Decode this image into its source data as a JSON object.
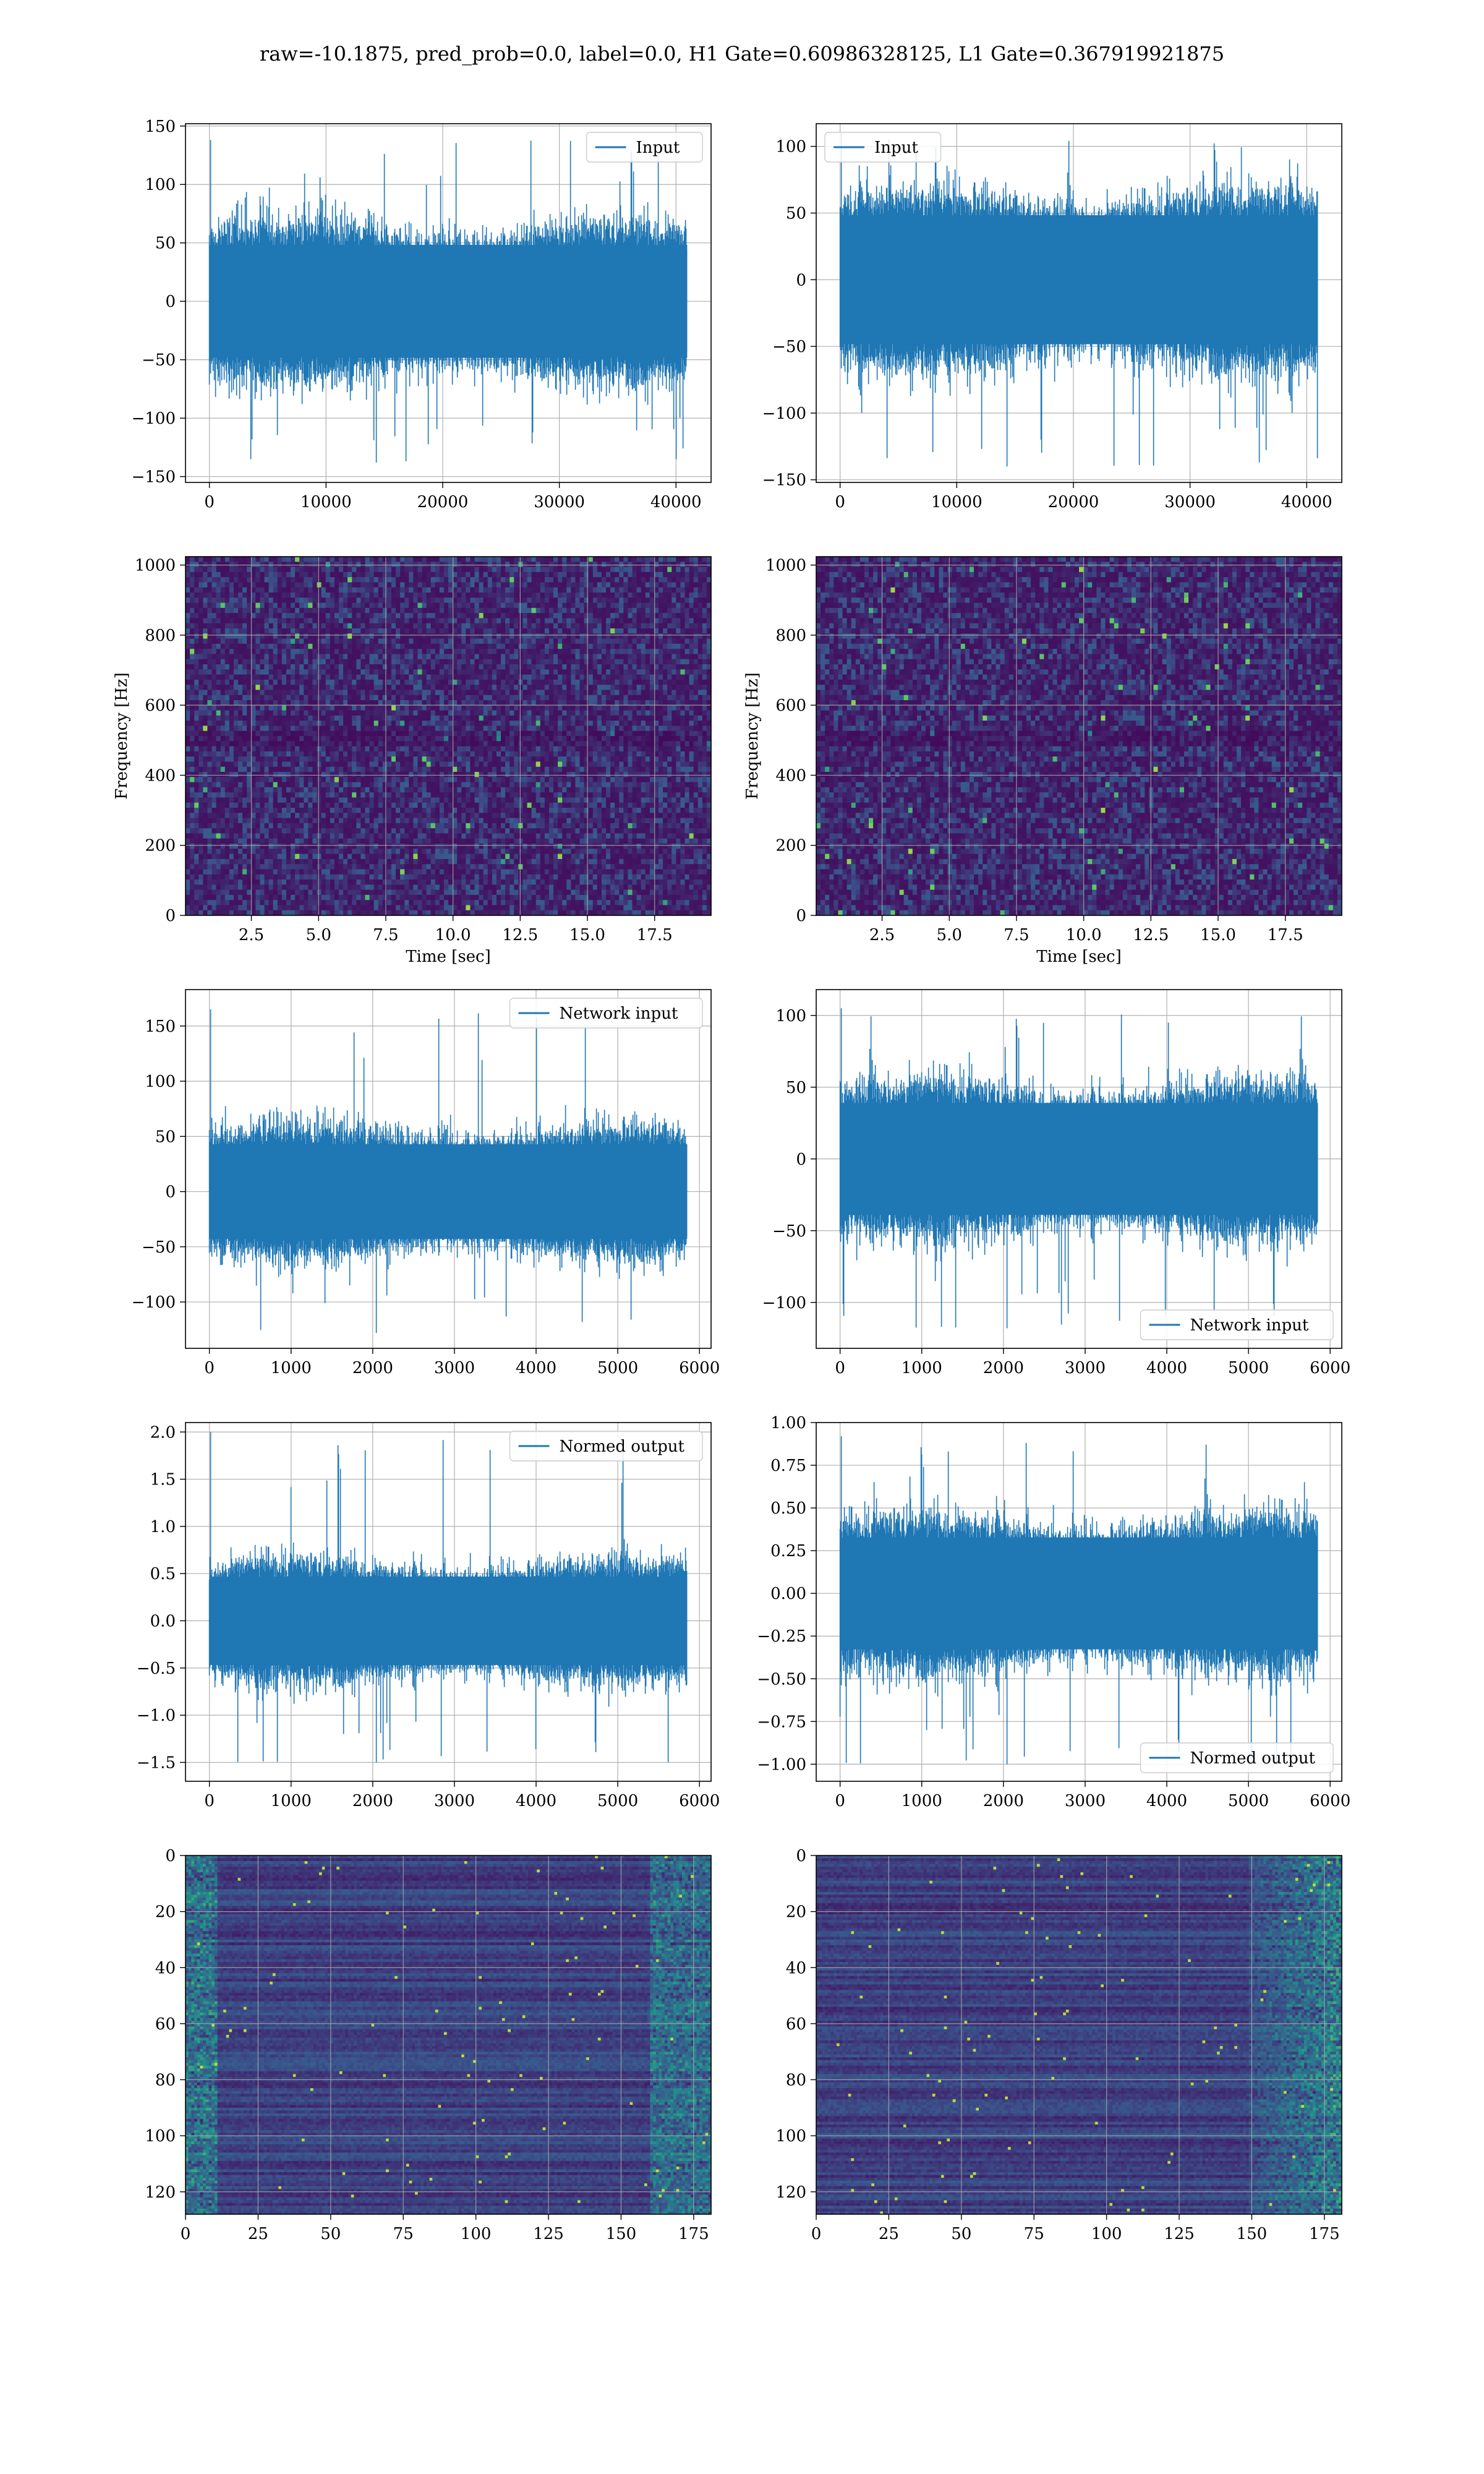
{
  "suptitle": "raw=-10.1875, pred_prob=0.0, label=0.0, H1 Gate=0.60986328125, L1 Gate=0.367919921875",
  "colors": {
    "line": "#1f77b4",
    "grid": "#b0b0b0",
    "viridis_dark": "#440154",
    "viridis_mid": "#21918c",
    "viridis_bright": "#fde725"
  },
  "chart_data": [
    {
      "type": "line",
      "row": 1,
      "col": 1,
      "legend": "Input",
      "legend_loc": "upper right",
      "x_range": [
        0,
        40960
      ],
      "ylim": [
        -155,
        152
      ],
      "xticks": [
        0,
        10000,
        20000,
        30000,
        40000
      ],
      "yticks": [
        -150,
        -100,
        -50,
        0,
        50,
        100,
        150
      ],
      "amplitude": {
        "typical": 62,
        "max": 138,
        "min": -138
      },
      "grid": true
    },
    {
      "type": "line",
      "row": 1,
      "col": 2,
      "legend": "Input",
      "legend_loc": "upper left",
      "x_range": [
        0,
        40960
      ],
      "ylim": [
        -152,
        117
      ],
      "xticks": [
        0,
        10000,
        20000,
        30000,
        40000
      ],
      "yticks": [
        -150,
        -100,
        -50,
        0,
        50,
        100
      ],
      "amplitude": {
        "typical": 62,
        "max": 110,
        "min": -140
      },
      "grid": true
    },
    {
      "type": "heatmap",
      "row": 2,
      "col": 1,
      "xlabel": "Time [sec]",
      "ylabel": "Frequency [Hz]",
      "xlim": [
        0.05,
        19.6
      ],
      "ylim": [
        0,
        1024
      ],
      "xticks": [
        2.5,
        5.0,
        7.5,
        10.0,
        12.5,
        15.0,
        17.5
      ],
      "yticks": [
        0,
        200,
        400,
        600,
        800,
        1000
      ],
      "colormap": "viridis",
      "grid": true
    },
    {
      "type": "heatmap",
      "row": 2,
      "col": 2,
      "xlabel": "Time [sec]",
      "ylabel": "Frequency [Hz]",
      "xlim": [
        0.05,
        19.6
      ],
      "ylim": [
        0,
        1024
      ],
      "xticks": [
        2.5,
        5.0,
        7.5,
        10.0,
        12.5,
        15.0,
        17.5
      ],
      "yticks": [
        0,
        200,
        400,
        600,
        800,
        1000
      ],
      "colormap": "viridis",
      "grid": true
    },
    {
      "type": "line",
      "row": 3,
      "col": 1,
      "legend": "Network input",
      "legend_loc": "upper right",
      "x_range": [
        0,
        5850
      ],
      "ylim": [
        -142,
        183
      ],
      "xticks": [
        0,
        1000,
        2000,
        3000,
        4000,
        5000,
        6000
      ],
      "yticks": [
        -100,
        -50,
        0,
        50,
        100,
        150
      ],
      "amplitude": {
        "typical": 55,
        "max": 165,
        "min": -128
      },
      "grid": true
    },
    {
      "type": "line",
      "row": 3,
      "col": 2,
      "legend": "Network input",
      "legend_loc": "lower right",
      "x_range": [
        0,
        5850
      ],
      "ylim": [
        -132,
        118
      ],
      "xticks": [
        0,
        1000,
        2000,
        3000,
        4000,
        5000,
        6000
      ],
      "yticks": [
        -100,
        -50,
        0,
        50,
        100
      ],
      "amplitude": {
        "typical": 50,
        "max": 105,
        "min": -118
      },
      "grid": true
    },
    {
      "type": "line",
      "row": 4,
      "col": 1,
      "legend": "Normed output",
      "legend_loc": "upper right",
      "x_range": [
        0,
        5850
      ],
      "ylim": [
        -1.7,
        2.1
      ],
      "xticks": [
        0,
        1000,
        2000,
        3000,
        4000,
        5000,
        6000
      ],
      "yticks": [
        -1.5,
        -1.0,
        -0.5,
        0.0,
        0.5,
        1.0,
        1.5,
        2.0
      ],
      "amplitude": {
        "typical": 0.6,
        "max": 2.0,
        "min": -1.5
      },
      "grid": true
    },
    {
      "type": "line",
      "row": 4,
      "col": 2,
      "legend": "Normed output",
      "legend_loc": "lower right",
      "x_range": [
        0,
        5850
      ],
      "ylim": [
        -1.1,
        1.0
      ],
      "xticks": [
        0,
        1000,
        2000,
        3000,
        4000,
        5000,
        6000
      ],
      "yticks": [
        -1.0,
        -0.75,
        -0.5,
        -0.25,
        0.0,
        0.25,
        0.5,
        0.75,
        1.0
      ],
      "amplitude": {
        "typical": 0.42,
        "max": 0.92,
        "min": -1.0
      },
      "grid": true
    },
    {
      "type": "heatmap",
      "row": 5,
      "col": 1,
      "xlim": [
        0,
        181
      ],
      "ylim": [
        128,
        0
      ],
      "xticks": [
        0,
        25,
        50,
        75,
        100,
        125,
        150,
        175
      ],
      "yticks": [
        0,
        20,
        40,
        60,
        80,
        100,
        120
      ],
      "colormap": "viridis",
      "grid": true
    },
    {
      "type": "heatmap",
      "row": 5,
      "col": 2,
      "xlim": [
        0,
        181
      ],
      "ylim": [
        128,
        0
      ],
      "xticks": [
        0,
        25,
        50,
        75,
        100,
        125,
        150,
        175
      ],
      "yticks": [
        0,
        20,
        40,
        60,
        80,
        100,
        120
      ],
      "colormap": "viridis",
      "grid": true
    }
  ]
}
